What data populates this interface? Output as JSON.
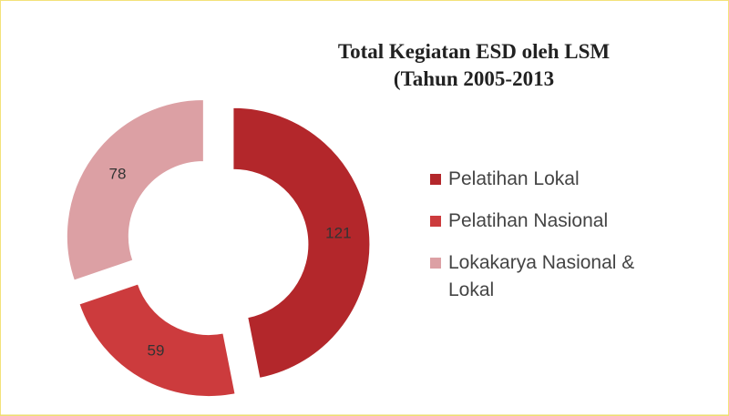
{
  "chart_data": {
    "type": "doughnut",
    "title": "Total Kegiatan ESD oleh LSM",
    "subtitle": "(Tahun 2005-2013",
    "categories": [
      "Pelatihan Lokal",
      "Pelatihan Nasional",
      "Lokakarya Nasional & Lokal"
    ],
    "values": [
      121,
      59,
      78
    ],
    "colors": [
      "#b3272b",
      "#cc3b3d",
      "#dca0a4"
    ],
    "legend": "right"
  }
}
